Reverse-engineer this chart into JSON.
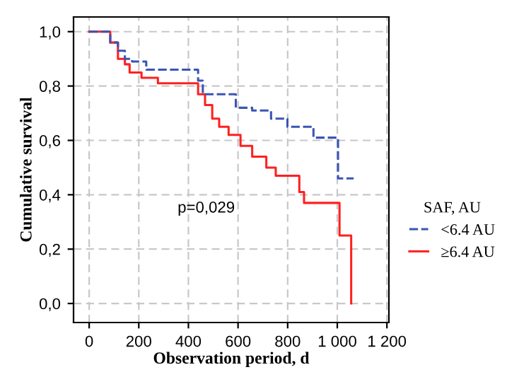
{
  "chart_data": {
    "type": "step",
    "xlabel": "Observation period, d",
    "ylabel": "Cumulative survival",
    "legend_title": "SAF, AU",
    "legend": "right",
    "grid": true,
    "xlim": [
      -63,
      1208
    ],
    "ylim": [
      -0.07,
      1.054
    ],
    "xticks": [
      0,
      200,
      400,
      600,
      800,
      {
        "value": 1000,
        "label": "1 000"
      },
      {
        "value": 1200,
        "label": "1 200"
      }
    ],
    "yticks": [
      {
        "value": 0,
        "label": "0,0"
      },
      {
        "value": 0.2,
        "label": "0,2"
      },
      {
        "value": 0.4,
        "label": "0,4"
      },
      {
        "value": 0.6,
        "label": "0,6"
      },
      {
        "value": 0.8,
        "label": "0,8"
      },
      {
        "value": 1,
        "label": "1,0"
      }
    ],
    "annotations": [
      "p=0,029"
    ],
    "series": [
      {
        "name": "<6.4 AU",
        "color": "#3a55b4",
        "line_style": "dashed",
        "x": [
          0,
          85,
          116,
          144,
          173,
          230,
          277,
          439,
          458,
          591,
          657,
          733,
          799,
          904,
          1003,
          1066
        ],
        "values": [
          1.0,
          0.96,
          0.93,
          0.9,
          0.89,
          0.86,
          0.86,
          0.82,
          0.77,
          0.72,
          0.71,
          0.68,
          0.65,
          0.61,
          0.46,
          0.46
        ]
      },
      {
        "name": "≥6.4 AU",
        "color": "#ff2020",
        "line_style": "solid",
        "x": [
          0,
          85,
          116,
          144,
          163,
          211,
          277,
          334,
          439,
          467,
          496,
          524,
          562,
          610,
          657,
          714,
          752,
          847,
          866,
          1009,
          1056
        ],
        "values": [
          1.0,
          0.96,
          0.9,
          0.88,
          0.85,
          0.83,
          0.81,
          0.81,
          0.77,
          0.73,
          0.68,
          0.65,
          0.62,
          0.58,
          0.54,
          0.5,
          0.47,
          0.41,
          0.37,
          0.25,
          0.0
        ]
      }
    ]
  }
}
